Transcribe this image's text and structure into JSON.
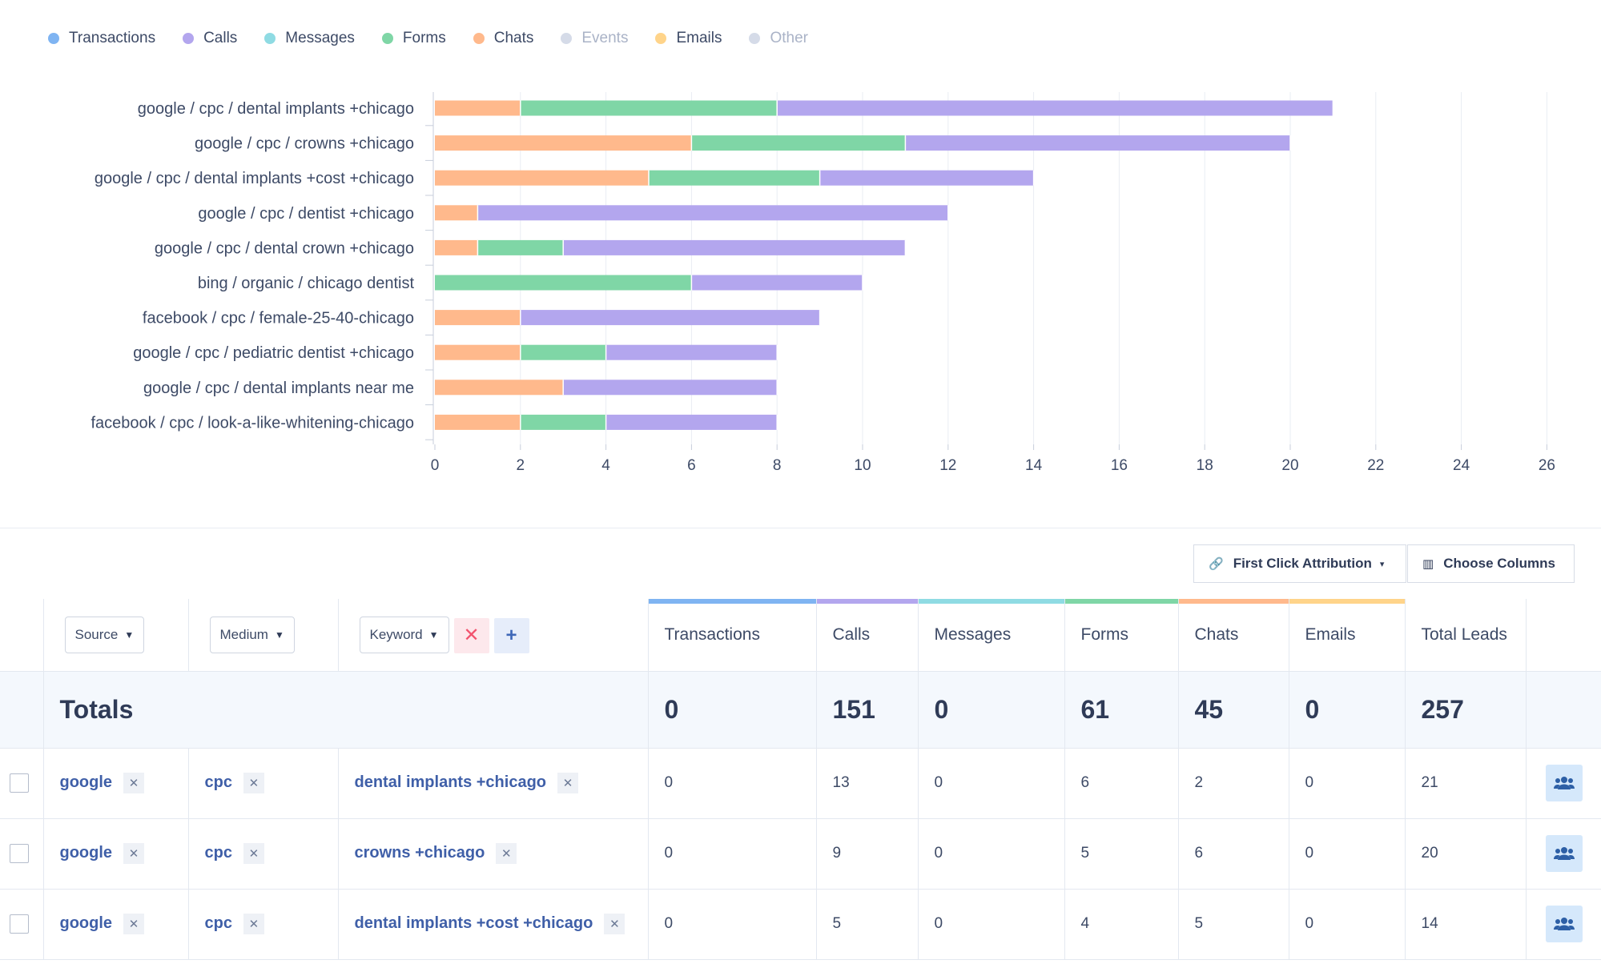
{
  "legend": [
    {
      "label": "Transactions",
      "color": "#7fb4f2",
      "active": true
    },
    {
      "label": "Calls",
      "color": "#b3a6ee",
      "active": true
    },
    {
      "label": "Messages",
      "color": "#8fdbe3",
      "active": true
    },
    {
      "label": "Forms",
      "color": "#7fd6a6",
      "active": true
    },
    {
      "label": "Chats",
      "color": "#ffb98c",
      "active": true
    },
    {
      "label": "Events",
      "color": "#d5dbe8",
      "active": false
    },
    {
      "label": "Emails",
      "color": "#ffd48a",
      "active": true
    },
    {
      "label": "Other",
      "color": "#d5dbe8",
      "active": false
    }
  ],
  "chart_data": {
    "type": "bar",
    "orientation": "horizontal",
    "stacked": true,
    "categories": [
      "google / cpc / dental implants +chicago",
      "google / cpc / crowns +chicago",
      "google / cpc / dental implants +cost +chicago",
      "google / cpc / dentist +chicago",
      "google / cpc / dental crown +chicago",
      "bing / organic / chicago dentist",
      "facebook / cpc / female-25-40-chicago",
      "google / cpc / pediatric dentist +chicago",
      "google / cpc / dental implants near me",
      "facebook / cpc / look-a-like-whitening-chicago"
    ],
    "series": [
      {
        "name": "Chats",
        "color": "#ffb98c",
        "values": [
          2,
          6,
          5,
          1,
          1,
          0,
          2,
          2,
          3,
          2
        ]
      },
      {
        "name": "Forms",
        "color": "#7fd6a6",
        "values": [
          6,
          5,
          4,
          0,
          2,
          6,
          0,
          2,
          0,
          2
        ]
      },
      {
        "name": "Calls",
        "color": "#b3a6ee",
        "values": [
          13,
          9,
          5,
          11,
          8,
          4,
          7,
          4,
          5,
          4
        ]
      }
    ],
    "xticks": [
      0,
      2,
      4,
      6,
      8,
      10,
      12,
      14,
      16,
      18,
      20,
      22,
      24,
      26
    ],
    "xlim": [
      0,
      26
    ],
    "grid": true,
    "legend": "top-left"
  },
  "toolbar": {
    "attribution_label": "First Click Attribution",
    "columns_label": "Choose Columns"
  },
  "filters": {
    "source": "Source",
    "medium": "Medium",
    "keyword": "Keyword",
    "remove_symbol": "✕",
    "add_symbol": "+"
  },
  "columns": [
    {
      "label": "Transactions",
      "color": "#7fb4f2"
    },
    {
      "label": "Calls",
      "color": "#b3a6ee"
    },
    {
      "label": "Messages",
      "color": "#8fdbe3"
    },
    {
      "label": "Forms",
      "color": "#7fd6a6"
    },
    {
      "label": "Chats",
      "color": "#ffb98c"
    },
    {
      "label": "Emails",
      "color": "#ffd48a"
    },
    {
      "label": "Total Leads",
      "color": ""
    }
  ],
  "totals": {
    "label": "Totals",
    "transactions": "0",
    "calls": "151",
    "messages": "0",
    "forms": "61",
    "chats": "45",
    "emails": "0",
    "total": "257"
  },
  "rows": [
    {
      "source": "google",
      "medium": "cpc",
      "keyword": "dental implants +chicago",
      "transactions": "0",
      "calls": "13",
      "messages": "0",
      "forms": "6",
      "chats": "2",
      "emails": "0",
      "total": "21"
    },
    {
      "source": "google",
      "medium": "cpc",
      "keyword": "crowns +chicago",
      "transactions": "0",
      "calls": "9",
      "messages": "0",
      "forms": "5",
      "chats": "6",
      "emails": "0",
      "total": "20"
    },
    {
      "source": "google",
      "medium": "cpc",
      "keyword": "dental implants +cost +chicago",
      "transactions": "0",
      "calls": "5",
      "messages": "0",
      "forms": "4",
      "chats": "5",
      "emails": "0",
      "total": "14"
    }
  ],
  "chip_remove": "✕"
}
